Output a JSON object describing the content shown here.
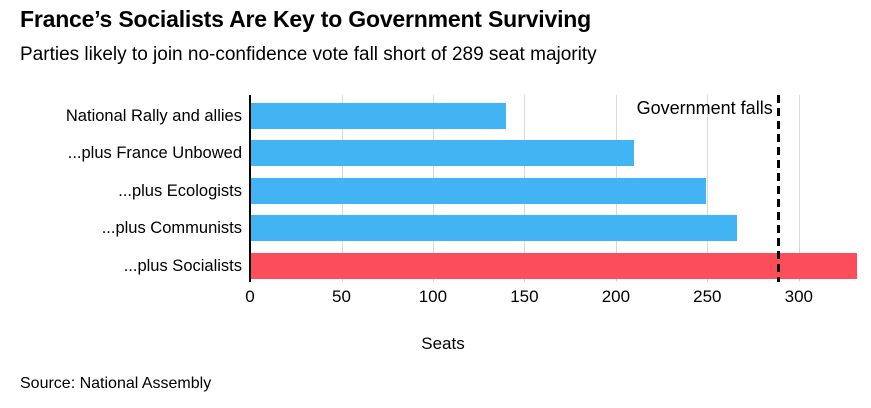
{
  "header": {
    "title": "France’s Socialists Are Key to Government Surviving",
    "subtitle": "Parties likely to join no-confidence vote fall short of 289 seat majority"
  },
  "chart_data": {
    "type": "bar",
    "orientation": "horizontal",
    "title": "France’s Socialists Are Key to Government Surviving",
    "subtitle": "Parties likely to join no-confidence vote fall short of 289 seat majority",
    "categories": [
      "National Rally and allies",
      "...plus France Unbowed",
      "...plus Ecologists",
      "...plus Communists",
      "...plus Socialists"
    ],
    "values": [
      140,
      210,
      249,
      266,
      332
    ],
    "highlight_index": 4,
    "xlabel": "Seats",
    "ylabel": "",
    "xlim": [
      0,
      334
    ],
    "xticks": [
      0,
      50,
      100,
      150,
      200,
      250,
      300
    ],
    "grid": "vertical",
    "legend": "none",
    "threshold": {
      "value": 289,
      "label": "Government falls"
    },
    "colors": {
      "bar_default": "#42B4F3",
      "bar_highlight": "#FB4D5A",
      "gridline": "#D9D9D9",
      "axis_line": "#000000",
      "threshold_line": "#000000",
      "text": "#000000"
    }
  },
  "footer": {
    "source": "Source: National Assembly"
  }
}
